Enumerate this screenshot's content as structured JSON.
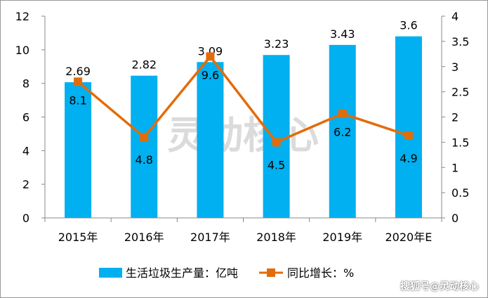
{
  "chart_data": {
    "type": "bar+line",
    "categories": [
      "2015年",
      "2016年",
      "2017年",
      "2018年",
      "2019年",
      "2020年E"
    ],
    "series": [
      {
        "name": "生活垃圾生产量：亿吨",
        "type": "bar",
        "axis": "right",
        "values": [
          2.69,
          2.82,
          3.09,
          3.23,
          3.43,
          3.6
        ],
        "labels": [
          "2.69",
          "2.82",
          "3.09",
          "3.23",
          "3.43",
          "3.6"
        ],
        "color": "#00B0F0"
      },
      {
        "name": "同比增长：%",
        "type": "line",
        "axis": "left",
        "values": [
          8.1,
          4.8,
          9.6,
          4.5,
          6.2,
          4.9
        ],
        "labels": [
          "8.1",
          "4.8",
          "9.6",
          "4.5",
          "6.2",
          "4.9"
        ],
        "color": "#E36C0A"
      }
    ],
    "left_axis": {
      "ylim": [
        0,
        12
      ],
      "ticks": [
        "0",
        "2",
        "4",
        "6",
        "8",
        "10",
        "12"
      ]
    },
    "right_axis": {
      "ylim": [
        0,
        4
      ],
      "ticks": [
        "0",
        "0.5",
        "1",
        "1.5",
        "2",
        "2.5",
        "3",
        "3.5",
        "4"
      ]
    },
    "grid": false,
    "legend_placement": "bottom"
  },
  "watermark": {
    "center": "灵动核心",
    "corner": "搜狐号@灵动核心"
  }
}
